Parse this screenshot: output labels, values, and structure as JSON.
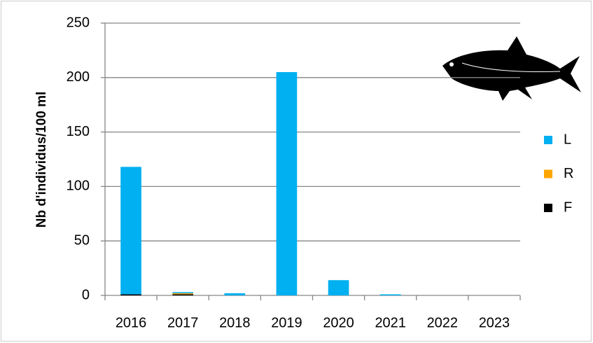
{
  "chart_data": {
    "type": "bar",
    "stacked": true,
    "y_label": "Nb d'individus/100 ml",
    "categories": [
      "2016",
      "2017",
      "2018",
      "2019",
      "2020",
      "2021",
      "2022",
      "2023"
    ],
    "series": [
      {
        "name": "L",
        "color": "#00b0f0",
        "values": [
          117,
          1,
          2,
          205,
          14,
          1,
          0,
          0
        ]
      },
      {
        "name": "R",
        "color": "#ffa500",
        "values": [
          0,
          1,
          0,
          0,
          0,
          0,
          0,
          0
        ]
      },
      {
        "name": "F",
        "color": "#000000",
        "values": [
          1,
          1,
          0,
          0,
          0,
          0,
          0,
          0
        ]
      }
    ],
    "ylim": [
      0,
      250
    ],
    "yticks": [
      0,
      50,
      100,
      150,
      200,
      250
    ],
    "grid": true,
    "legend": "right"
  }
}
